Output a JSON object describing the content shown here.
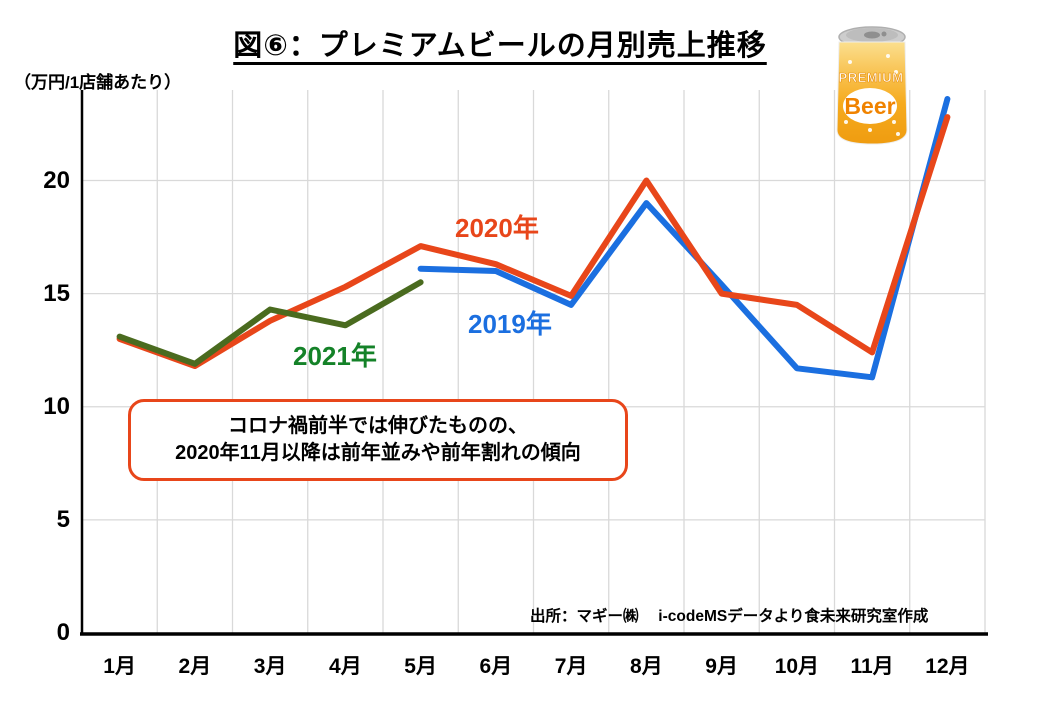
{
  "title": "図⑥：プレミアムビールの月別売上推移",
  "y_axis_unit": "（万円/1店舗あたり）",
  "source": "出所：マギー㈱　 i-codeMSデータより食未来研究室作成",
  "annotation": {
    "line1": "コロナ禍前半では伸びたものの、",
    "line2": "2020年11月以降は前年並みや前年割れの傾向",
    "border_color": "#E8461A"
  },
  "beer_can": {
    "top_label": "PREMIUM",
    "main_label": "Beer",
    "body_color": "#F6AB1E",
    "text_color": "#F08300"
  },
  "chart_data": {
    "type": "line",
    "categories": [
      "1月",
      "2月",
      "3月",
      "4月",
      "5月",
      "6月",
      "7月",
      "8月",
      "9月",
      "10月",
      "11月",
      "12月"
    ],
    "series": [
      {
        "name": "2019年",
        "color": "#1B6FE0",
        "label_color": "#1B6FE0",
        "values": [
          null,
          null,
          null,
          null,
          16.1,
          16.0,
          14.5,
          19.0,
          15.4,
          11.7,
          11.3,
          23.6
        ]
      },
      {
        "name": "2020年",
        "color": "#E8461A",
        "label_color": "#E8461A",
        "values": [
          13.0,
          11.8,
          13.8,
          15.3,
          17.1,
          16.3,
          14.9,
          20.0,
          15.0,
          14.5,
          12.4,
          22.8
        ]
      },
      {
        "name": "2021年",
        "color": "#4A6B1F",
        "label_color": "#148228",
        "values": [
          13.1,
          11.9,
          14.3,
          13.6,
          15.5,
          null,
          null,
          null,
          null,
          null,
          null,
          null
        ]
      }
    ],
    "title": "図⑥：プレミアムビールの月別売上推移",
    "xlabel": "",
    "ylabel": "（万円/1店舗あたり）",
    "ylim": [
      0,
      24
    ],
    "yticks": [
      0,
      5,
      10,
      15,
      20
    ],
    "grid": true,
    "gridline_color": "#D9D9D9",
    "axis_color": "#000000",
    "legend_position": "inline-labels"
  }
}
